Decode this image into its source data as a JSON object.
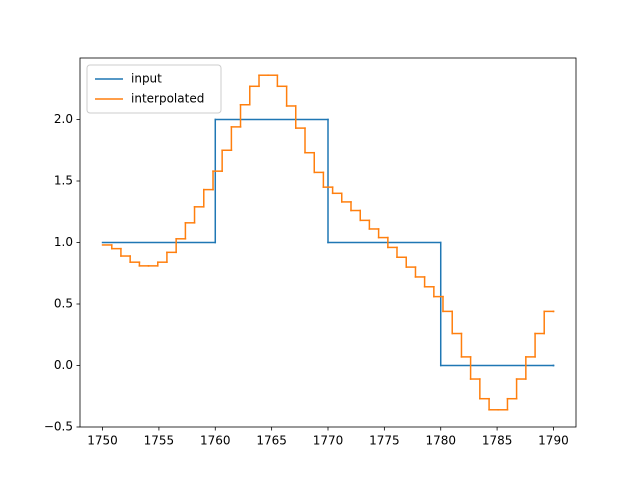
{
  "chart_data": {
    "type": "step",
    "series": [
      {
        "name": "input",
        "color": "#1f77b4",
        "x": [
          1750,
          1760,
          1770,
          1780,
          1790
        ],
        "values": [
          1,
          2,
          1,
          0,
          0
        ]
      },
      {
        "name": "interpolated",
        "color": "#ff7f0e",
        "x": [
          1750,
          1750.82,
          1751.63,
          1752.45,
          1753.27,
          1754.08,
          1754.9,
          1755.71,
          1756.53,
          1757.35,
          1758.16,
          1758.98,
          1759.8,
          1760.61,
          1761.43,
          1762.24,
          1763.06,
          1763.88,
          1764.69,
          1765.51,
          1766.33,
          1767.14,
          1767.96,
          1768.78,
          1769.59,
          1770.41,
          1771.22,
          1772.04,
          1772.86,
          1773.67,
          1774.49,
          1775.31,
          1776.12,
          1776.94,
          1777.76,
          1778.57,
          1779.39,
          1780.2,
          1781.02,
          1781.84,
          1782.65,
          1783.47,
          1784.29,
          1785.1,
          1785.92,
          1786.73,
          1787.55,
          1788.37,
          1789.18,
          1790
        ],
        "values": [
          0.98,
          0.95,
          0.89,
          0.84,
          0.81,
          0.81,
          0.84,
          0.92,
          1.03,
          1.16,
          1.29,
          1.43,
          1.58,
          1.75,
          1.94,
          2.12,
          2.27,
          2.36,
          2.36,
          2.27,
          2.11,
          1.93,
          1.73,
          1.57,
          1.45,
          1.4,
          1.33,
          1.26,
          1.18,
          1.11,
          1.04,
          0.96,
          0.88,
          0.8,
          0.72,
          0.64,
          0.56,
          0.44,
          0.26,
          0.07,
          -0.11,
          -0.27,
          -0.36,
          -0.36,
          -0.27,
          -0.11,
          0.07,
          0.26,
          0.44,
          0.44
        ]
      }
    ],
    "xlim": [
      1748,
      1792
    ],
    "xticks": [
      1750,
      1755,
      1760,
      1765,
      1770,
      1775,
      1780,
      1785,
      1790
    ],
    "ylim": [
      -0.5,
      2.5
    ],
    "yticks": [
      {
        "value": -0.5,
        "label": "−0.5"
      },
      {
        "value": 0,
        "label": "0.0"
      },
      {
        "value": 0.5,
        "label": "0.5"
      },
      {
        "value": 1,
        "label": "1.0"
      },
      {
        "value": 1.5,
        "label": "1.5"
      },
      {
        "value": 2,
        "label": "2.0"
      }
    ],
    "legend": "upper left",
    "grid": false
  }
}
